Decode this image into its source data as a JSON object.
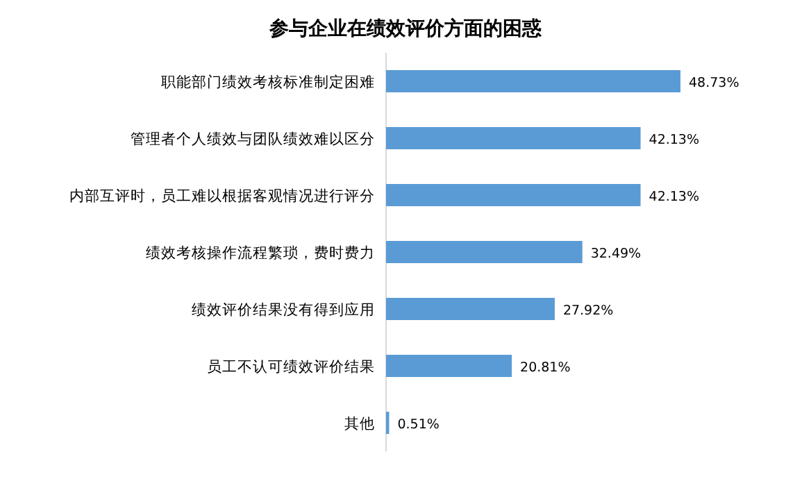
{
  "chart_data": {
    "type": "bar",
    "orientation": "horizontal",
    "title": "参与企业在绩效评价方面的困惑",
    "categories": [
      "职能部门绩效考核标准制定困难",
      "管理者个人绩效与团队绩效难以区分",
      "内部互评时，员工难以根据客观情况进行评分",
      "绩效考核操作流程繁琐，费时费力",
      "绩效评价结果没有得到应用",
      "员工不认可绩效评价结果",
      "其他"
    ],
    "values": [
      48.73,
      42.13,
      42.13,
      32.49,
      27.92,
      20.81,
      0.51
    ],
    "value_labels": [
      "48.73%",
      "42.13%",
      "42.13%",
      "32.49%",
      "27.92%",
      "20.81%",
      "0.51%"
    ],
    "color": "#5b9bd5"
  }
}
